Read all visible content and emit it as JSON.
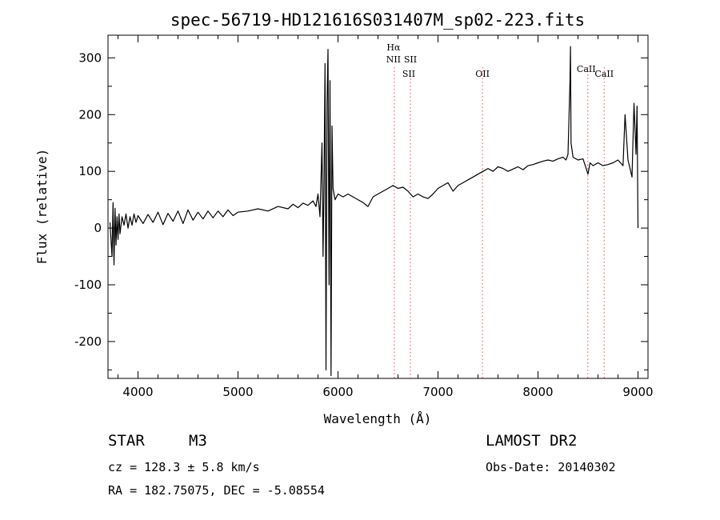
{
  "chart_data": {
    "type": "line",
    "title": "spec-56719-HD121616S031407M_sp02-223.fits",
    "xlabel": "Wavelength (Å)",
    "ylabel": "Flux (relative)",
    "xlim": [
      3700,
      9100
    ],
    "ylim": [
      -265,
      340
    ],
    "xticks": [
      4000,
      5000,
      6000,
      7000,
      8000,
      9000
    ],
    "yticks": [
      -200,
      -100,
      0,
      100,
      200,
      300
    ],
    "grid": false,
    "series": [
      {
        "values": [
          [
            3720,
            10
          ],
          [
            3740,
            -50
          ],
          [
            3750,
            45
          ],
          [
            3760,
            -65
          ],
          [
            3770,
            35
          ],
          [
            3780,
            -30
          ],
          [
            3790,
            20
          ],
          [
            3800,
            -20
          ],
          [
            3810,
            25
          ],
          [
            3820,
            -10
          ],
          [
            3840,
            20
          ],
          [
            3860,
            5
          ],
          [
            3880,
            25
          ],
          [
            3900,
            0
          ],
          [
            3920,
            20
          ],
          [
            3940,
            5
          ],
          [
            3960,
            25
          ],
          [
            3980,
            10
          ],
          [
            4000,
            22
          ],
          [
            4050,
            8
          ],
          [
            4100,
            24
          ],
          [
            4150,
            10
          ],
          [
            4200,
            28
          ],
          [
            4250,
            6
          ],
          [
            4300,
            26
          ],
          [
            4350,
            12
          ],
          [
            4400,
            30
          ],
          [
            4450,
            8
          ],
          [
            4500,
            32
          ],
          [
            4550,
            14
          ],
          [
            4600,
            28
          ],
          [
            4650,
            16
          ],
          [
            4700,
            30
          ],
          [
            4750,
            18
          ],
          [
            4800,
            30
          ],
          [
            4850,
            20
          ],
          [
            4900,
            32
          ],
          [
            4950,
            22
          ],
          [
            5000,
            28
          ],
          [
            5100,
            30
          ],
          [
            5200,
            34
          ],
          [
            5300,
            30
          ],
          [
            5400,
            38
          ],
          [
            5500,
            34
          ],
          [
            5550,
            42
          ],
          [
            5600,
            36
          ],
          [
            5650,
            44
          ],
          [
            5700,
            40
          ],
          [
            5750,
            48
          ],
          [
            5780,
            38
          ],
          [
            5800,
            60
          ],
          [
            5820,
            20
          ],
          [
            5840,
            150
          ],
          [
            5850,
            -50
          ],
          [
            5860,
            80
          ],
          [
            5870,
            290
          ],
          [
            5880,
            -250
          ],
          [
            5890,
            220
          ],
          [
            5900,
            315
          ],
          [
            5910,
            -100
          ],
          [
            5920,
            260
          ],
          [
            5930,
            -260
          ],
          [
            5940,
            180
          ],
          [
            5950,
            70
          ],
          [
            5970,
            50
          ],
          [
            6000,
            60
          ],
          [
            6050,
            55
          ],
          [
            6100,
            60
          ],
          [
            6150,
            55
          ],
          [
            6200,
            50
          ],
          [
            6250,
            45
          ],
          [
            6300,
            38
          ],
          [
            6350,
            55
          ],
          [
            6400,
            60
          ],
          [
            6450,
            65
          ],
          [
            6500,
            70
          ],
          [
            6550,
            75
          ],
          [
            6600,
            70
          ],
          [
            6650,
            72
          ],
          [
            6700,
            65
          ],
          [
            6750,
            55
          ],
          [
            6800,
            60
          ],
          [
            6850,
            55
          ],
          [
            6900,
            52
          ],
          [
            6950,
            60
          ],
          [
            7000,
            70
          ],
          [
            7050,
            75
          ],
          [
            7100,
            80
          ],
          [
            7150,
            65
          ],
          [
            7200,
            75
          ],
          [
            7250,
            80
          ],
          [
            7300,
            85
          ],
          [
            7350,
            90
          ],
          [
            7400,
            95
          ],
          [
            7450,
            100
          ],
          [
            7500,
            105
          ],
          [
            7550,
            100
          ],
          [
            7600,
            108
          ],
          [
            7650,
            105
          ],
          [
            7700,
            100
          ],
          [
            7750,
            104
          ],
          [
            7800,
            108
          ],
          [
            7850,
            103
          ],
          [
            7900,
            110
          ],
          [
            7950,
            112
          ],
          [
            8000,
            115
          ],
          [
            8050,
            118
          ],
          [
            8100,
            120
          ],
          [
            8150,
            118
          ],
          [
            8200,
            122
          ],
          [
            8250,
            125
          ],
          [
            8280,
            120
          ],
          [
            8300,
            130
          ],
          [
            8320,
            260
          ],
          [
            8325,
            320
          ],
          [
            8330,
            150
          ],
          [
            8350,
            125
          ],
          [
            8400,
            120
          ],
          [
            8450,
            122
          ],
          [
            8500,
            95
          ],
          [
            8520,
            115
          ],
          [
            8550,
            110
          ],
          [
            8600,
            115
          ],
          [
            8650,
            110
          ],
          [
            8700,
            112
          ],
          [
            8750,
            115
          ],
          [
            8800,
            120
          ],
          [
            8850,
            110
          ],
          [
            8870,
            200
          ],
          [
            8900,
            120
          ],
          [
            8940,
            90
          ],
          [
            8960,
            220
          ],
          [
            8980,
            130
          ],
          [
            8990,
            215
          ],
          [
            9000,
            0
          ]
        ]
      }
    ],
    "markers": [
      {
        "wavelength": 6563,
        "labels": [
          "Hα",
          "NII"
        ]
      },
      {
        "wavelength": 6724,
        "labels": [
          "SII",
          "SII"
        ]
      },
      {
        "wavelength": 7445,
        "labels": [
          "OII"
        ]
      },
      {
        "wavelength": 8498,
        "labels": [
          "CaII"
        ]
      },
      {
        "wavelength": 8662,
        "labels": [
          "CaII"
        ]
      }
    ]
  },
  "info": {
    "class": "STAR",
    "subclass": "M3",
    "survey": "LAMOST DR2",
    "cz": "cz = 128.3 ± 5.8 km/s",
    "obs_date": "Obs-Date: 20140302",
    "coords": "RA = 182.75075, DEC =  -5.08554"
  }
}
